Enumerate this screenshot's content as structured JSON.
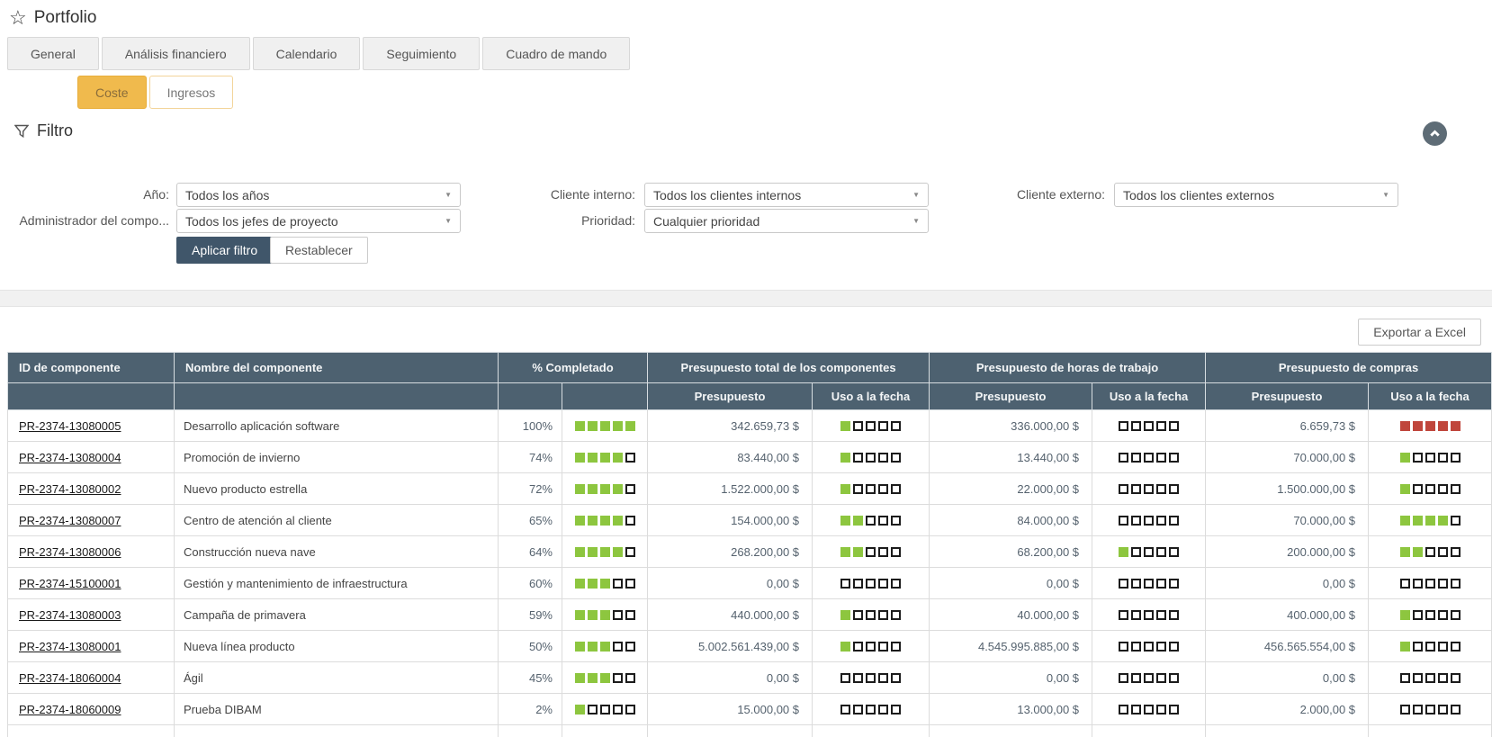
{
  "page": {
    "title": "Portfolio"
  },
  "tabs": [
    {
      "label": "General",
      "active": false
    },
    {
      "label": "Análisis financiero",
      "active": true
    },
    {
      "label": "Calendario",
      "active": false
    },
    {
      "label": "Seguimiento",
      "active": false
    },
    {
      "label": "Cuadro de mando",
      "active": false
    }
  ],
  "subtabs": [
    {
      "label": "Coste",
      "active": true
    },
    {
      "label": "Ingresos",
      "active": false
    }
  ],
  "filter": {
    "heading": "Filtro",
    "fields": [
      {
        "label": "Año:",
        "value": "Todos los años"
      },
      {
        "label": "Administrador del compo...",
        "value": "Todos los jefes de proyecto"
      },
      {
        "label": "Cliente interno:",
        "value": "Todos los clientes internos"
      },
      {
        "label": "Prioridad:",
        "value": "Cualquier prioridad"
      },
      {
        "label": "Cliente externo:",
        "value": "Todos los clientes externos"
      }
    ],
    "apply_label": "Aplicar filtro",
    "reset_label": "Restablecer"
  },
  "toolbar": {
    "export_label": "Exportar a Excel"
  },
  "table": {
    "group_headers": [
      "ID de componente",
      "Nombre del componente",
      "% Completado",
      "Presupuesto total de los componentes",
      "Presupuesto de horas de trabajo",
      "Presupuesto de compras"
    ],
    "sub_headers": {
      "presupuesto": "Presupuesto",
      "uso": "Uso a la fecha"
    },
    "rows": [
      {
        "id": "PR-2374-13080005",
        "name": "Desarrollo aplicación software",
        "pct": "100%",
        "pct_filled": 5,
        "total": {
          "budget": "342.659,73 $",
          "used": 1,
          "used_color": "green"
        },
        "hours": {
          "budget": "336.000,00 $",
          "used": 0,
          "used_color": "green"
        },
        "purchases": {
          "budget": "6.659,73 $",
          "used": 5,
          "used_color": "red"
        }
      },
      {
        "id": "PR-2374-13080004",
        "name": "Promoción de invierno",
        "pct": "74%",
        "pct_filled": 4,
        "total": {
          "budget": "83.440,00 $",
          "used": 1,
          "used_color": "green"
        },
        "hours": {
          "budget": "13.440,00 $",
          "used": 0,
          "used_color": "green"
        },
        "purchases": {
          "budget": "70.000,00 $",
          "used": 1,
          "used_color": "green"
        }
      },
      {
        "id": "PR-2374-13080002",
        "name": "Nuevo producto estrella",
        "pct": "72%",
        "pct_filled": 4,
        "total": {
          "budget": "1.522.000,00 $",
          "used": 1,
          "used_color": "green"
        },
        "hours": {
          "budget": "22.000,00 $",
          "used": 0,
          "used_color": "green"
        },
        "purchases": {
          "budget": "1.500.000,00 $",
          "used": 1,
          "used_color": "green"
        }
      },
      {
        "id": "PR-2374-13080007",
        "name": "Centro de atención al cliente",
        "pct": "65%",
        "pct_filled": 4,
        "total": {
          "budget": "154.000,00 $",
          "used": 2,
          "used_color": "green"
        },
        "hours": {
          "budget": "84.000,00 $",
          "used": 0,
          "used_color": "green"
        },
        "purchases": {
          "budget": "70.000,00 $",
          "used": 4,
          "used_color": "green"
        }
      },
      {
        "id": "PR-2374-13080006",
        "name": "Construcción nueva nave",
        "pct": "64%",
        "pct_filled": 4,
        "total": {
          "budget": "268.200,00 $",
          "used": 2,
          "used_color": "green"
        },
        "hours": {
          "budget": "68.200,00 $",
          "used": 1,
          "used_color": "green"
        },
        "purchases": {
          "budget": "200.000,00 $",
          "used": 2,
          "used_color": "green"
        }
      },
      {
        "id": "PR-2374-15100001",
        "name": "Gestión y mantenimiento de infraestructura",
        "pct": "60%",
        "pct_filled": 3,
        "total": {
          "budget": "0,00 $",
          "used": 0,
          "used_color": "green"
        },
        "hours": {
          "budget": "0,00 $",
          "used": 0,
          "used_color": "green"
        },
        "purchases": {
          "budget": "0,00 $",
          "used": 0,
          "used_color": "green"
        }
      },
      {
        "id": "PR-2374-13080003",
        "name": "Campaña de primavera",
        "pct": "59%",
        "pct_filled": 3,
        "total": {
          "budget": "440.000,00 $",
          "used": 1,
          "used_color": "green"
        },
        "hours": {
          "budget": "40.000,00 $",
          "used": 0,
          "used_color": "green"
        },
        "purchases": {
          "budget": "400.000,00 $",
          "used": 1,
          "used_color": "green"
        }
      },
      {
        "id": "PR-2374-13080001",
        "name": "Nueva línea producto",
        "pct": "50%",
        "pct_filled": 3,
        "total": {
          "budget": "5.002.561.439,00 $",
          "used": 1,
          "used_color": "green"
        },
        "hours": {
          "budget": "4.545.995.885,00 $",
          "used": 0,
          "used_color": "green"
        },
        "purchases": {
          "budget": "456.565.554,00 $",
          "used": 1,
          "used_color": "green"
        }
      },
      {
        "id": "PR-2374-18060004",
        "name": "Ágil",
        "pct": "45%",
        "pct_filled": 3,
        "total": {
          "budget": "0,00 $",
          "used": 0,
          "used_color": "green"
        },
        "hours": {
          "budget": "0,00 $",
          "used": 0,
          "used_color": "green"
        },
        "purchases": {
          "budget": "0,00 $",
          "used": 0,
          "used_color": "green"
        }
      },
      {
        "id": "PR-2374-18060009",
        "name": "Prueba DIBAM",
        "pct": "2%",
        "pct_filled": 1,
        "total": {
          "budget": "15.000,00 $",
          "used": 0,
          "used_color": "green"
        },
        "hours": {
          "budget": "13.000,00 $",
          "used": 0,
          "used_color": "green"
        },
        "purchases": {
          "budget": "2.000,00 $",
          "used": 0,
          "used_color": "green"
        }
      }
    ]
  },
  "colors": {
    "header_bg": "#4d6170",
    "accent_orange": "#f0ba4d",
    "apply_button": "#40566a",
    "progress_green": "#8dc63f",
    "progress_red": "#c0463c"
  }
}
